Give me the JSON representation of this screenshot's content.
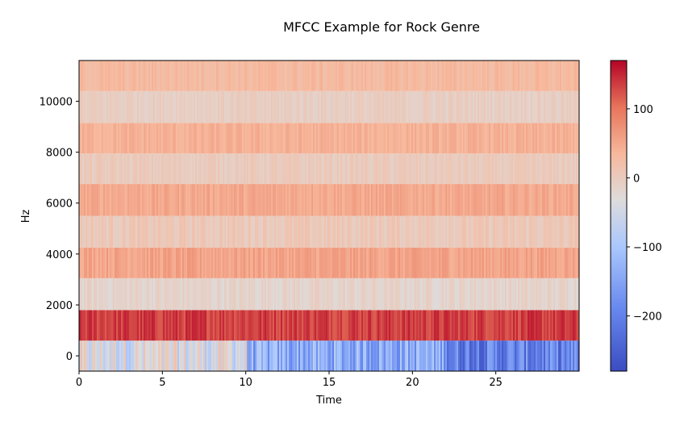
{
  "chart_data": {
    "type": "heatmap",
    "title": "MFCC Example for Rock Genre",
    "xlabel": "Time",
    "ylabel": "Hz",
    "xlim": [
      0,
      30
    ],
    "ylim": [
      -600,
      11600
    ],
    "xticks": [
      0,
      5,
      10,
      15,
      20,
      25
    ],
    "yticks": [
      0,
      2000,
      4000,
      6000,
      8000,
      10000
    ],
    "colorbar": {
      "range": [
        -280,
        170
      ],
      "ticks": [
        100,
        0,
        -100,
        -200
      ],
      "tick_labels": [
        "100",
        "0",
        "−100",
        "−200"
      ],
      "colormap": "coolwarm"
    },
    "bands": [
      {
        "low": -600,
        "high": 600,
        "mean": -120,
        "variation": 60
      },
      {
        "low": 600,
        "high": 1800,
        "mean": 135,
        "variation": 20
      },
      {
        "low": 1800,
        "high": 3050,
        "mean": -15,
        "variation": 15
      },
      {
        "low": 3050,
        "high": 4250,
        "mean": 55,
        "variation": 15
      },
      {
        "low": 4250,
        "high": 5500,
        "mean": 5,
        "variation": 15
      },
      {
        "low": 5500,
        "high": 6750,
        "mean": 50,
        "variation": 12
      },
      {
        "low": 6750,
        "high": 7950,
        "mean": 0,
        "variation": 12
      },
      {
        "low": 7950,
        "high": 9150,
        "mean": 40,
        "variation": 12
      },
      {
        "low": 9150,
        "high": 10400,
        "mean": -5,
        "variation": 12
      },
      {
        "low": 10400,
        "high": 11600,
        "mean": 30,
        "variation": 12
      }
    ]
  }
}
